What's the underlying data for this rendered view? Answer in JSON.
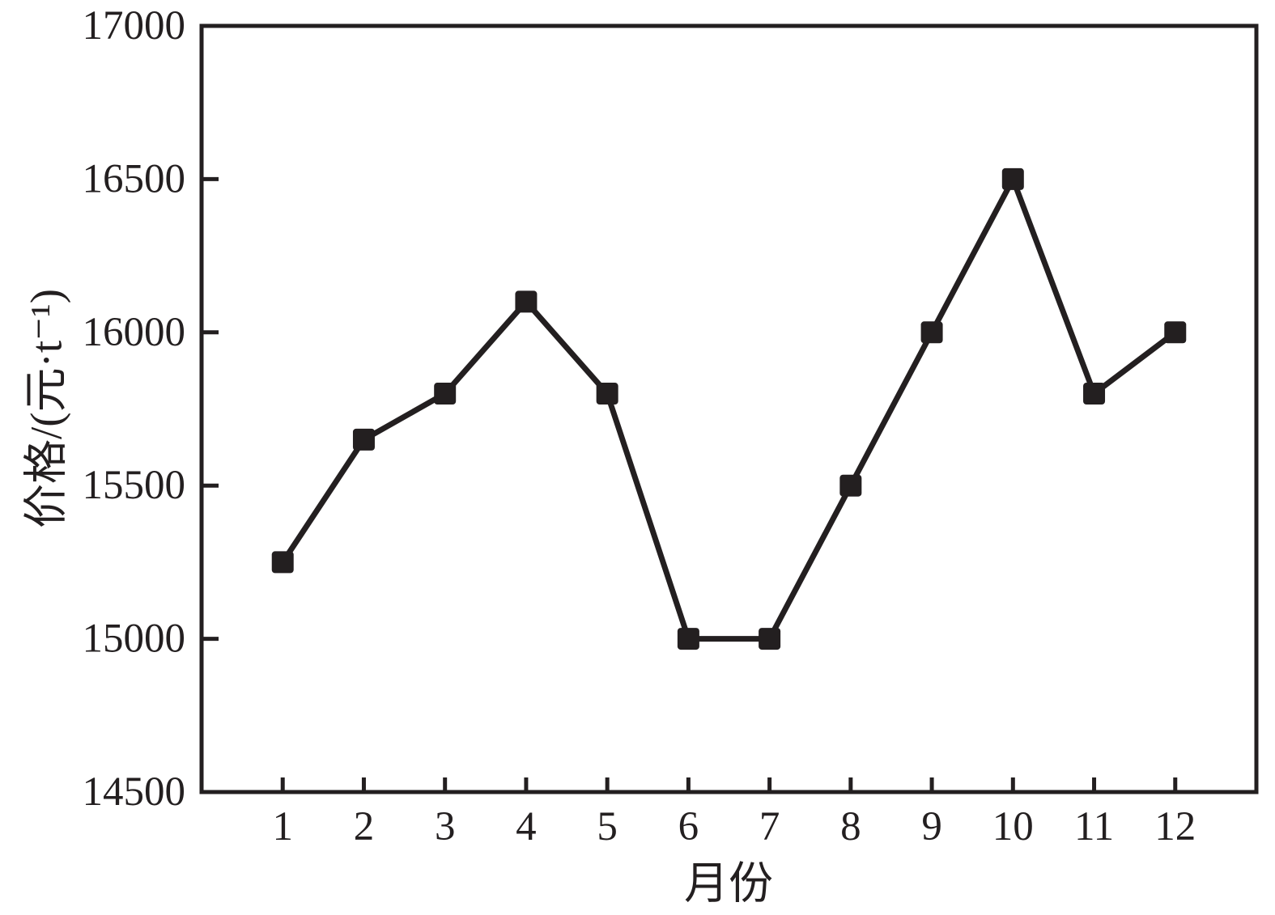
{
  "chart_data": {
    "type": "line",
    "title": "",
    "xlabel": "月份",
    "ylabel": "价格/(元·t⁻¹)",
    "x": [
      1,
      2,
      3,
      4,
      5,
      6,
      7,
      8,
      9,
      10,
      11,
      12
    ],
    "xtick_labels": [
      "1",
      "2",
      "3",
      "4",
      "5",
      "6",
      "7",
      "8",
      "9",
      "10",
      "11",
      "12"
    ],
    "series": [
      {
        "name": "价格",
        "values": [
          15250,
          15650,
          15800,
          16100,
          15800,
          15000,
          15000,
          15500,
          16000,
          16500,
          15800,
          16000
        ]
      }
    ],
    "xlim": [
      0,
      13
    ],
    "ylim": [
      14500,
      17000
    ],
    "yticks": [
      14500,
      15000,
      15500,
      16000,
      16500,
      17000
    ],
    "ytick_labels": [
      "14500",
      "15000",
      "15500",
      "16000",
      "16500",
      "17000"
    ],
    "grid": false,
    "legend_position": "none",
    "marker": "square",
    "line_color": "#231f20",
    "marker_color": "#231f20",
    "axis_color": "#231f20",
    "background_color": "#ffffff"
  }
}
